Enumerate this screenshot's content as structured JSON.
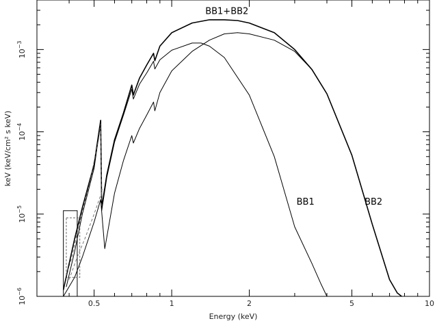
{
  "chart_data": {
    "type": "line",
    "title": "",
    "xlabel": "Energy (keV)",
    "ylabel": "keV (keV/cm² s keV)",
    "x_scale": "log",
    "y_scale": "log",
    "xlim": [
      0.3,
      10
    ],
    "ylim": [
      1e-06,
      0.004
    ],
    "grid": false,
    "legend": "none",
    "x_ticks": [
      {
        "value": 0.5,
        "label": "0.5"
      },
      {
        "value": 1,
        "label": "1"
      },
      {
        "value": 2,
        "label": "2"
      },
      {
        "value": 5,
        "label": "5"
      },
      {
        "value": 10,
        "label": "10"
      }
    ],
    "y_ticks": [
      {
        "value": 1e-06,
        "base": "10",
        "exp": "−6"
      },
      {
        "value": 1e-05,
        "base": "10",
        "exp": "−5"
      },
      {
        "value": 0.0001,
        "base": "10",
        "exp": "−4"
      },
      {
        "value": 0.001,
        "base": "10",
        "exp": "−3"
      }
    ],
    "annotations": [
      {
        "text": "BB1+BB2",
        "x": 1.35,
        "y": 0.0027
      },
      {
        "text": "BB1",
        "x": 3.05,
        "y": 1.3e-05
      },
      {
        "text": "BB2",
        "x": 5.6,
        "y": 1.3e-05
      }
    ],
    "series": [
      {
        "key": "total",
        "color": "#000000",
        "dashed": false,
        "width": 1.6,
        "x": [
          0.38,
          0.4,
          0.42,
          0.45,
          0.5,
          0.53,
          0.535,
          0.56,
          0.6,
          0.65,
          0.7,
          0.71,
          0.75,
          0.8,
          0.85,
          0.86,
          0.9,
          1.0,
          1.2,
          1.4,
          1.6,
          1.8,
          2.0,
          2.5,
          3.0,
          3.5,
          4.0,
          5.0,
          6.0,
          7.0,
          7.5,
          7.8
        ],
        "y": [
          1.2e-06,
          2.5e-06,
          5e-06,
          1.2e-05,
          4e-05,
          0.000138,
          1.2e-05,
          3e-05,
          8e-05,
          0.00017,
          0.00037,
          0.00028,
          0.00045,
          0.00065,
          0.0009,
          0.00073,
          0.0011,
          0.0016,
          0.0021,
          0.0023,
          0.0023,
          0.00225,
          0.0021,
          0.0016,
          0.001,
          0.00057,
          0.00029,
          5.2e-05,
          7.5e-06,
          1.6e-06,
          1.1e-06,
          1e-06
        ]
      },
      {
        "key": "bb1",
        "color": "#000000",
        "dashed": false,
        "width": 1.0,
        "x": [
          0.39,
          0.42,
          0.45,
          0.5,
          0.53,
          0.535,
          0.56,
          0.6,
          0.65,
          0.7,
          0.71,
          0.75,
          0.8,
          0.85,
          0.86,
          0.9,
          1.0,
          1.2,
          1.3,
          1.4,
          1.6,
          2.0,
          2.5,
          3.0,
          3.5,
          3.8,
          4.0
        ],
        "y": [
          1.3e-06,
          3.5e-06,
          1e-05,
          3.6e-05,
          0.00013,
          1.1e-05,
          2.8e-05,
          7.5e-05,
          0.00016,
          0.00033,
          0.00025,
          0.00038,
          0.00052,
          0.00072,
          0.00058,
          0.00075,
          0.00098,
          0.0012,
          0.0012,
          0.0011,
          0.0008,
          0.00028,
          5e-05,
          7e-06,
          2.5e-06,
          1.4e-06,
          1e-06
        ]
      },
      {
        "key": "bb2",
        "color": "#000000",
        "dashed": false,
        "width": 1.0,
        "x": [
          0.38,
          0.42,
          0.45,
          0.5,
          0.53,
          0.55,
          0.6,
          0.65,
          0.7,
          0.71,
          0.75,
          0.8,
          0.85,
          0.86,
          0.9,
          1.0,
          1.2,
          1.4,
          1.6,
          1.8,
          2.0,
          2.5,
          3.0,
          3.5,
          4.0,
          5.0,
          6.0,
          7.0,
          7.5,
          7.8
        ],
        "y": [
          1e-06,
          1.7e-06,
          3e-06,
          8e-06,
          1.5e-05,
          3.8e-06,
          1.8e-05,
          4.5e-05,
          9e-05,
          7.3e-05,
          0.00011,
          0.00016,
          0.00023,
          0.00018,
          0.0003,
          0.00055,
          0.00095,
          0.0013,
          0.00155,
          0.0016,
          0.00155,
          0.0013,
          0.00095,
          0.00057,
          0.00029,
          5.2e-05,
          7.5e-06,
          1.6e-06,
          1.1e-06,
          1e-06
        ]
      },
      {
        "key": "dashed-a",
        "color": "#555555",
        "dashed": true,
        "width": 1.0,
        "x": [
          0.39,
          0.41,
          0.43,
          0.45,
          0.48,
          0.52,
          0.53,
          0.535
        ],
        "y": [
          1.8e-06,
          3e-06,
          6e-06,
          1.1e-05,
          2.3e-05,
          8e-05,
          0.000125,
          1.2e-05
        ]
      },
      {
        "key": "dashed-b",
        "color": "#777777",
        "dashed": true,
        "width": 1.0,
        "x": [
          0.4,
          0.43,
          0.46,
          0.5,
          0.54
        ],
        "y": [
          1.6e-06,
          3e-06,
          5e-06,
          1e-05,
          2e-05
        ]
      }
    ],
    "boxes": [
      {
        "x0": 0.38,
        "x1": 0.43,
        "y0": 1e-06,
        "y1": 1.1e-05,
        "dashed": false
      },
      {
        "x0": 0.39,
        "x1": 0.44,
        "y0": 1.7e-06,
        "y1": 9e-06,
        "dashed": true
      }
    ]
  }
}
